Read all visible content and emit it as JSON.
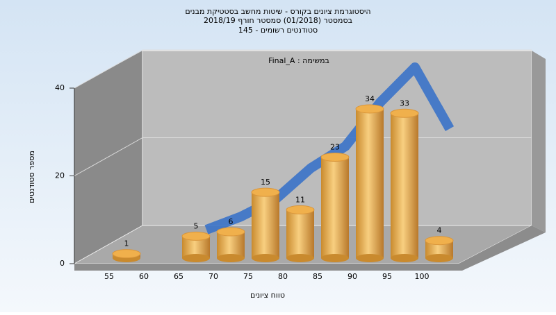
{
  "chart_data": {
    "type": "bar3d",
    "title": [
      "היסטוגרמת ציונים בקורס - שיטות מחשב בסטטיקת מבנים",
      "בסמסטר  (01/2018)  סמסטר חורף 2018/19",
      "סטודנטים רשומים - 145"
    ],
    "legend_text": "Final_A : במשימה",
    "x_label": "טווח ציונים",
    "y_label": "מספר סטודנטים",
    "categories": [
      "55",
      "60",
      "65",
      "70",
      "75",
      "80",
      "85",
      "90",
      "95",
      "100"
    ],
    "values": [
      1,
      null,
      5,
      6,
      15,
      11,
      23,
      34,
      33,
      4
    ],
    "color": "#e8a440",
    "curve": {
      "color": "#3a72c8",
      "values": [
        null,
        null,
        3,
        6,
        10,
        17,
        22,
        32,
        40,
        26
      ]
    },
    "ylim": [
      0,
      40
    ],
    "yticks": [
      0,
      20,
      40
    ],
    "grid": true
  }
}
